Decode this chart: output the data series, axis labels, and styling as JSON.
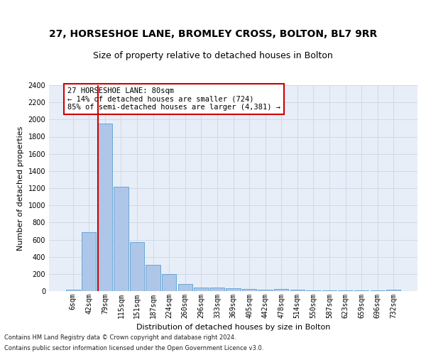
{
  "title": "27, HORSESHOE LANE, BROMLEY CROSS, BOLTON, BL7 9RR",
  "subtitle": "Size of property relative to detached houses in Bolton",
  "xlabel": "Distribution of detached houses by size in Bolton",
  "ylabel": "Number of detached properties",
  "categories": [
    "6sqm",
    "42sqm",
    "79sqm",
    "115sqm",
    "151sqm",
    "187sqm",
    "224sqm",
    "260sqm",
    "296sqm",
    "333sqm",
    "369sqm",
    "405sqm",
    "442sqm",
    "478sqm",
    "514sqm",
    "550sqm",
    "587sqm",
    "623sqm",
    "659sqm",
    "696sqm",
    "732sqm"
  ],
  "values": [
    15,
    690,
    1950,
    1220,
    570,
    305,
    200,
    80,
    45,
    38,
    32,
    28,
    20,
    25,
    15,
    10,
    5,
    5,
    5,
    5,
    20
  ],
  "bar_color": "#aec6e8",
  "bar_edge_color": "#5a9fd4",
  "grid_color": "#d0d8e8",
  "background_color": "#e8eef8",
  "vline_color": "#cc0000",
  "vline_x_index": 2,
  "annotation_text": "27 HORSESHOE LANE: 80sqm\n← 14% of detached houses are smaller (724)\n85% of semi-detached houses are larger (4,381) →",
  "annotation_box_color": "#cc0000",
  "ylim": [
    0,
    2400
  ],
  "yticks": [
    0,
    200,
    400,
    600,
    800,
    1000,
    1200,
    1400,
    1600,
    1800,
    2000,
    2200,
    2400
  ],
  "footnote1": "Contains HM Land Registry data © Crown copyright and database right 2024.",
  "footnote2": "Contains public sector information licensed under the Open Government Licence v3.0.",
  "title_fontsize": 10,
  "subtitle_fontsize": 9,
  "label_fontsize": 8,
  "tick_fontsize": 7,
  "annotation_fontsize": 7.5,
  "footnote_fontsize": 6
}
